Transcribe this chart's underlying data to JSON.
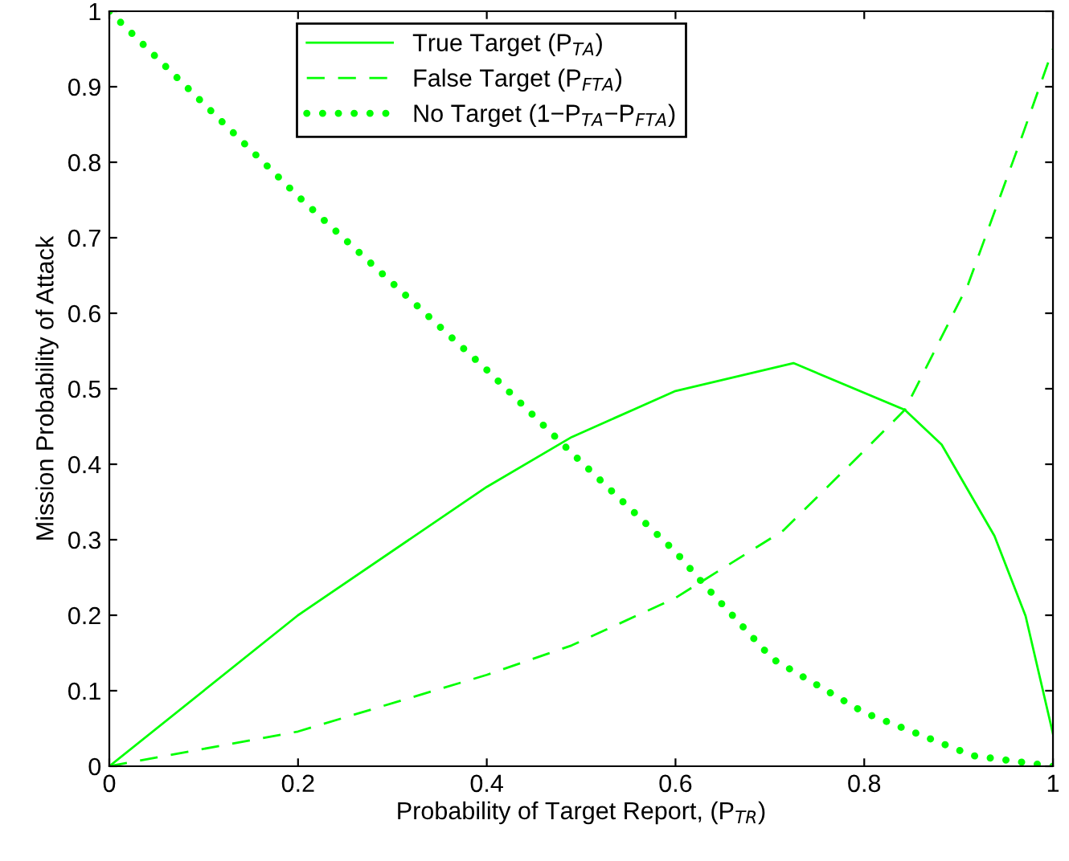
{
  "chart_data": {
    "type": "line",
    "xlabel": "Probability of Target Report, (P$_{TR}$)",
    "ylabel": "Mission Probability of Attack",
    "xlim": [
      0,
      1
    ],
    "ylim": [
      0,
      1
    ],
    "xticks": [
      0,
      0.2,
      0.4,
      0.6,
      0.8,
      1
    ],
    "yticks": [
      0,
      0.1,
      0.2,
      0.3,
      0.4,
      0.5,
      0.6,
      0.7,
      0.8,
      0.9,
      1
    ],
    "grid": false,
    "legend": "top",
    "marker": "none",
    "series": [
      {
        "name": "True Target (P$_{TA}$)",
        "color": "#00ff00",
        "line_style": "solid",
        "x": [
          0,
          0.2,
          0.4,
          0.49,
          0.6,
          0.725,
          0.843,
          0.882,
          0.938,
          0.971,
          1.0
        ],
        "values": [
          0,
          0.2,
          0.37,
          0.436,
          0.497,
          0.534,
          0.472,
          0.426,
          0.305,
          0.199,
          0.043
        ]
      },
      {
        "name": "False Target (P$_{FTA}$)",
        "color": "#00ff00",
        "line_style": "dashed",
        "x": [
          0,
          0.2,
          0.4,
          0.49,
          0.6,
          0.714,
          0.8,
          0.843,
          0.91,
          0.966,
          1.0
        ],
        "values": [
          0,
          0.046,
          0.121,
          0.16,
          0.223,
          0.312,
          0.418,
          0.472,
          0.638,
          0.83,
          0.95
        ]
      },
      {
        "name": "No Target (1−P$_{TA}$−P$_{FTA}$)",
        "color": "#00ff00",
        "line_style": "dotted",
        "x": [
          0,
          0.2,
          0.4,
          0.49,
          0.6,
          0.63,
          0.703,
          0.8,
          0.915,
          1.0
        ],
        "values": [
          1,
          0.755,
          0.525,
          0.415,
          0.284,
          0.241,
          0.142,
          0.071,
          0.014,
          0
        ]
      }
    ]
  }
}
